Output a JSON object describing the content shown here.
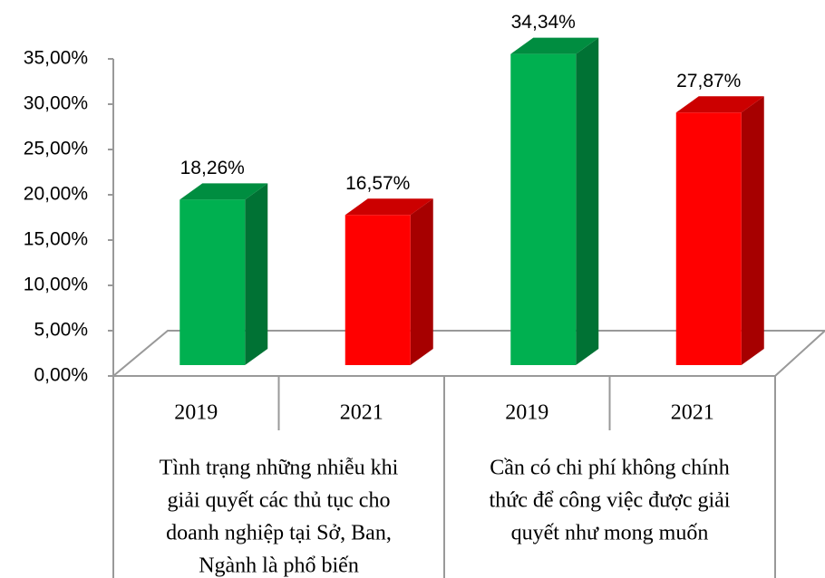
{
  "chart_data": {
    "type": "bar",
    "categories": [
      "2019",
      "2021",
      "2019",
      "2021"
    ],
    "values": [
      18.26,
      16.57,
      34.34,
      27.87
    ],
    "value_labels": [
      "18,26%",
      "16,57%",
      "34,34%",
      "27,87%"
    ],
    "colors": [
      "#00b050",
      "#ff0000",
      "#00b050",
      "#ff0000"
    ],
    "groups": [
      {
        "lines": [
          "Tình trạng những nhiễu khi",
          "giải quyết các thủ tục cho",
          "doanh nghiệp tại Sở, Ban,",
          "Ngành là phổ biến"
        ]
      },
      {
        "lines": [
          "Cần có chi phí không chính",
          "thức để công việc được giải",
          "quyết như mong muốn"
        ]
      }
    ],
    "ylim": [
      0,
      35
    ],
    "yticks": [
      {
        "value": 0,
        "label": "0,00%"
      },
      {
        "value": 5,
        "label": "5,00%"
      },
      {
        "value": 10,
        "label": "10,00%"
      },
      {
        "value": 15,
        "label": "15,00%"
      },
      {
        "value": 20,
        "label": "20,00%"
      },
      {
        "value": 25,
        "label": "25,00%"
      },
      {
        "value": 30,
        "label": "30,00%"
      },
      {
        "value": 35,
        "label": "35,00%"
      }
    ]
  }
}
